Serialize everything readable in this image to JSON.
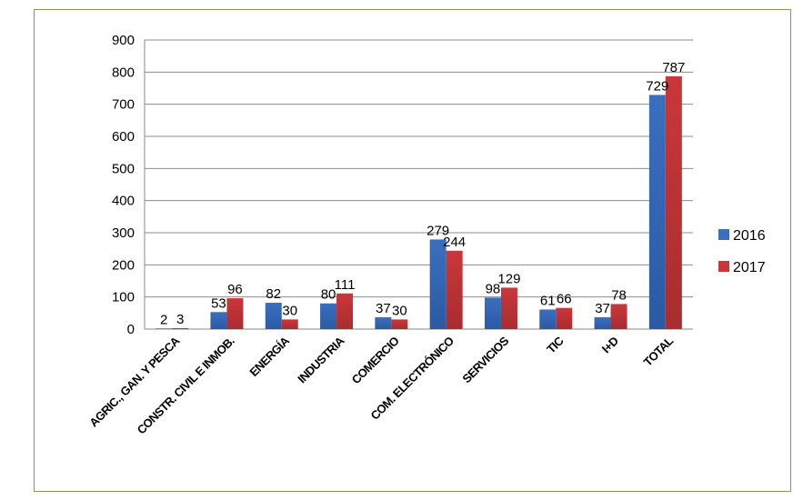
{
  "chart_data": {
    "type": "bar",
    "title": "",
    "xlabel": "",
    "ylabel": "",
    "ylim": [
      0,
      900
    ],
    "yticks": [
      0,
      100,
      200,
      300,
      400,
      500,
      600,
      700,
      800,
      900
    ],
    "grid": true,
    "legend_position": "right",
    "categories": [
      "AGRIC., GAN. Y PESCA",
      "CONSTR. CIVIL E INMOB.",
      "ENERGÍA",
      "INDUSTRIA",
      "COMERCIO",
      "COM. ELECTRÓNICO",
      "SERVICIOS",
      "TIC",
      "I+D",
      "TOTAL"
    ],
    "series": [
      {
        "name": "2016",
        "color": "#3a6fbf",
        "values": [
          2,
          53,
          82,
          80,
          37,
          279,
          98,
          61,
          37,
          729
        ]
      },
      {
        "name": "2017",
        "color": "#c9373a",
        "values": [
          3,
          96,
          30,
          111,
          30,
          244,
          129,
          66,
          78,
          787
        ]
      }
    ]
  }
}
